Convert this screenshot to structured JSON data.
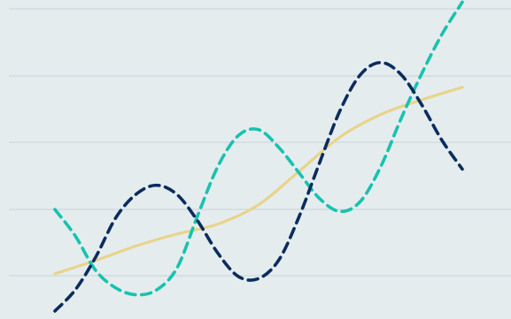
{
  "chart_data": {
    "type": "line",
    "title": "",
    "xlabel": "",
    "ylabel": "",
    "xlim": [
      0,
      12
    ],
    "ylim": [
      0,
      5
    ],
    "grid": {
      "horizontal": true,
      "vertical": false
    },
    "legend": "none",
    "series": [
      {
        "style": "dashed",
        "color": "#0b2c5e",
        "points": [
          [
            0.0,
            0.0
          ],
          [
            0.5,
            0.6
          ],
          [
            1.0,
            1.28
          ],
          [
            1.5,
            1.88
          ],
          [
            2.0,
            2.23
          ],
          [
            2.5,
            2.36
          ],
          [
            3.0,
            2.22
          ],
          [
            3.5,
            1.83
          ],
          [
            4.0,
            1.34
          ],
          [
            4.5,
            0.98
          ],
          [
            5.0,
            0.92
          ],
          [
            5.5,
            1.24
          ],
          [
            6.0,
            1.9
          ],
          [
            6.5,
            2.7
          ],
          [
            7.0,
            3.48
          ],
          [
            7.5,
            4.02
          ],
          [
            8.0,
            4.2
          ],
          [
            8.5,
            4.02
          ],
          [
            9.0,
            3.57
          ],
          [
            9.5,
            3.03
          ],
          [
            10.0,
            2.6
          ]
        ]
      },
      {
        "style": "dashed",
        "color": "#17c2ae",
        "points": [
          [
            0.0,
            2.0
          ],
          [
            0.5,
            1.6
          ],
          [
            1.0,
            1.08
          ],
          [
            1.5,
            0.65
          ],
          [
            2.0,
            0.46
          ],
          [
            2.5,
            0.6
          ],
          [
            3.0,
            1.12
          ],
          [
            3.5,
            1.9
          ],
          [
            4.0,
            2.64
          ],
          [
            4.5,
            3.1
          ],
          [
            5.0,
            3.19
          ],
          [
            5.5,
            2.92
          ],
          [
            6.0,
            2.54
          ],
          [
            6.5,
            2.16
          ],
          [
            7.0,
            1.97
          ],
          [
            7.5,
            2.12
          ],
          [
            8.0,
            2.64
          ],
          [
            8.5,
            3.36
          ],
          [
            9.0,
            4.03
          ],
          [
            9.5,
            4.62
          ],
          [
            10.0,
            5.1
          ]
        ]
      },
      {
        "style": "solid",
        "color": "#e8d48a",
        "points": [
          [
            0.0,
            1.03
          ],
          [
            1.0,
            1.23
          ],
          [
            2.0,
            1.45
          ],
          [
            3.0,
            1.63
          ],
          [
            4.0,
            1.78
          ],
          [
            5.0,
            2.07
          ],
          [
            6.0,
            2.57
          ],
          [
            7.0,
            3.08
          ],
          [
            8.0,
            3.42
          ],
          [
            9.0,
            3.64
          ],
          [
            10.0,
            3.83
          ]
        ]
      }
    ]
  },
  "gridlines": [
    1,
    2,
    3,
    4,
    5
  ]
}
